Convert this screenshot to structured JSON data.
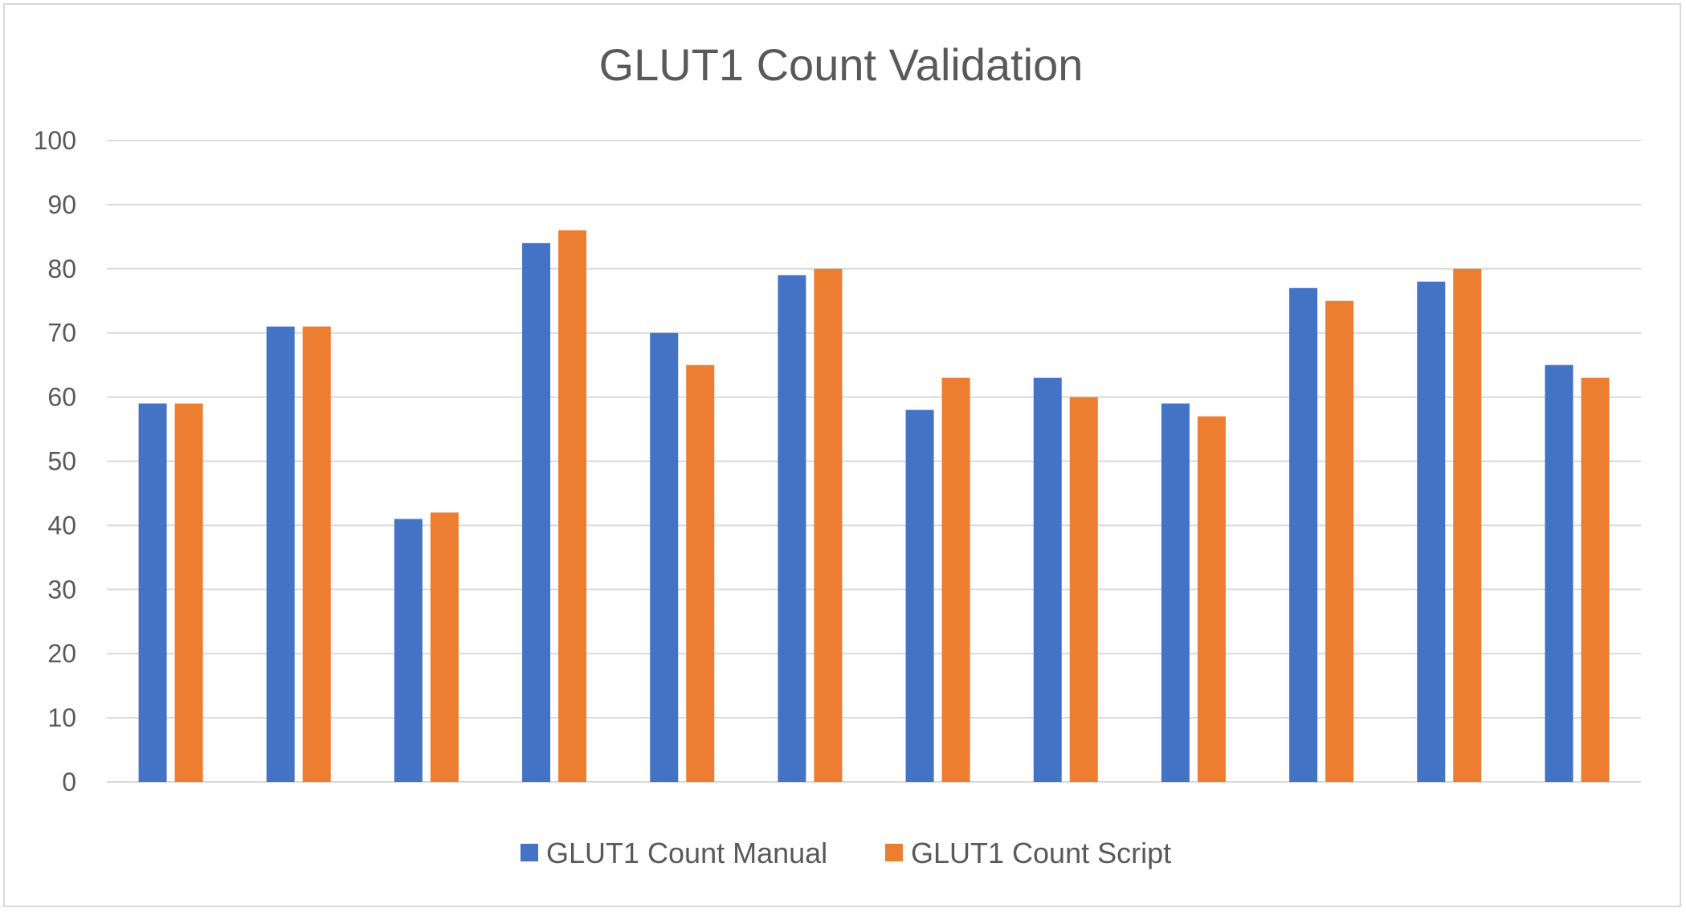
{
  "chart_data": {
    "type": "bar",
    "title": "GLUT1 Count Validation",
    "xlabel": "",
    "ylabel": "",
    "ylim": [
      0,
      100
    ],
    "yticks": [
      0,
      10,
      20,
      30,
      40,
      50,
      60,
      70,
      80,
      90,
      100
    ],
    "grid": true,
    "legend_position": "bottom",
    "categories": [
      "",
      "",
      "",
      "",
      "",
      "",
      "",
      "",
      "",
      "",
      "",
      ""
    ],
    "series": [
      {
        "name": "GLUT1 Count Manual",
        "color": "#4472c4",
        "values": [
          59,
          71,
          41,
          84,
          70,
          79,
          58,
          63,
          59,
          77,
          78,
          65
        ]
      },
      {
        "name": "GLUT1 Count Script",
        "color": "#ed7d31",
        "values": [
          59,
          71,
          42,
          86,
          65,
          80,
          63,
          60,
          57,
          75,
          80,
          63
        ]
      }
    ]
  }
}
